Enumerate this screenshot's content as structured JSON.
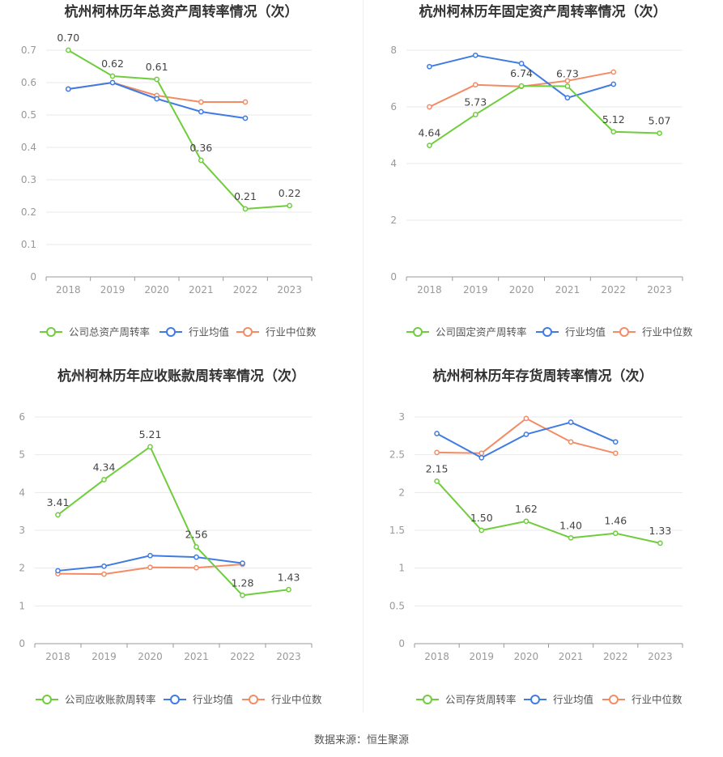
{
  "legend_labels": {
    "industry_avg": "行业均值",
    "industry_median": "行业中位数"
  },
  "colors": {
    "company": "#6fcd3d",
    "industry_avg": "#3f7be2",
    "industry_median": "#f38c65",
    "grid": "#e8e8e8",
    "axis": "#999999",
    "tick_text": "#999999",
    "label_text": "#444444",
    "title_text": "#333333"
  },
  "source_text": "数据来源：恒生聚源",
  "chart_data": [
    {
      "type": "line",
      "title": "杭州柯林历年总资产周转率情况（次）",
      "x": [
        "2018",
        "2019",
        "2020",
        "2021",
        "2022",
        "2023"
      ],
      "ylim": [
        0,
        0.7
      ],
      "yticks": [
        "0",
        "0.1",
        "0.2",
        "0.3",
        "0.4",
        "0.5",
        "0.6",
        "0.7"
      ],
      "grid": true,
      "legend_position": "bottom",
      "series": [
        {
          "name": "公司总资产周转率",
          "role": "company",
          "values": [
            0.7,
            0.62,
            0.61,
            0.36,
            0.21,
            0.22
          ],
          "labels": [
            "0.70",
            "0.62",
            "0.61",
            "0.36",
            "0.21",
            "0.22"
          ]
        },
        {
          "name": "行业均值",
          "role": "industry_avg",
          "values": [
            0.58,
            0.6,
            0.55,
            0.51,
            0.49,
            null
          ]
        },
        {
          "name": "行业中位数",
          "role": "industry_median",
          "values": [
            0.58,
            0.6,
            0.56,
            0.54,
            0.54,
            null
          ]
        }
      ]
    },
    {
      "type": "line",
      "title": "杭州柯林历年固定资产周转率情况（次）",
      "x": [
        "2018",
        "2019",
        "2020",
        "2021",
        "2022",
        "2023"
      ],
      "ylim": [
        0,
        8
      ],
      "yticks": [
        "0",
        "2",
        "4",
        "6",
        "8"
      ],
      "grid": true,
      "legend_position": "bottom",
      "series": [
        {
          "name": "公司固定资产周转率",
          "role": "company",
          "values": [
            4.64,
            5.73,
            6.74,
            6.73,
            5.12,
            5.07
          ],
          "labels": [
            "4.64",
            "5.73",
            "6.74",
            "6.73",
            "5.12",
            "5.07"
          ]
        },
        {
          "name": "行业均值",
          "role": "industry_avg",
          "values": [
            7.42,
            7.82,
            7.53,
            6.32,
            6.8,
            null
          ]
        },
        {
          "name": "行业中位数",
          "role": "industry_median",
          "values": [
            6.0,
            6.78,
            6.72,
            6.92,
            7.23,
            null
          ]
        }
      ]
    },
    {
      "type": "line",
      "title": "杭州柯林历年应收账款周转率情况（次）",
      "x": [
        "2018",
        "2019",
        "2020",
        "2021",
        "2022",
        "2023"
      ],
      "ylim": [
        0,
        6
      ],
      "yticks": [
        "0",
        "1",
        "2",
        "3",
        "4",
        "5",
        "6"
      ],
      "grid": true,
      "legend_position": "bottom",
      "series": [
        {
          "name": "公司应收账款周转率",
          "role": "company",
          "values": [
            3.41,
            4.34,
            5.21,
            2.56,
            1.28,
            1.43
          ],
          "labels": [
            "3.41",
            "4.34",
            "5.21",
            "2.56",
            "1.28",
            "1.43"
          ]
        },
        {
          "name": "行业均值",
          "role": "industry_avg",
          "values": [
            1.93,
            2.05,
            2.33,
            2.29,
            2.13,
            null
          ]
        },
        {
          "name": "行业中位数",
          "role": "industry_median",
          "values": [
            1.85,
            1.84,
            2.02,
            2.01,
            2.1,
            null
          ]
        }
      ]
    },
    {
      "type": "line",
      "title": "杭州柯林历年存货周转率情况（次）",
      "x": [
        "2018",
        "2019",
        "2020",
        "2021",
        "2022",
        "2023"
      ],
      "ylim": [
        0,
        3
      ],
      "yticks": [
        "0",
        "0.5",
        "1",
        "1.5",
        "2",
        "2.5",
        "3"
      ],
      "grid": true,
      "legend_position": "bottom",
      "series": [
        {
          "name": "公司存货周转率",
          "role": "company",
          "values": [
            2.15,
            1.5,
            1.62,
            1.4,
            1.46,
            1.33
          ],
          "labels": [
            "2.15",
            "1.50",
            "1.62",
            "1.40",
            "1.46",
            "1.33"
          ]
        },
        {
          "name": "行业均值",
          "role": "industry_avg",
          "values": [
            2.78,
            2.46,
            2.77,
            2.93,
            2.67,
            null
          ]
        },
        {
          "name": "行业中位数",
          "role": "industry_median",
          "values": [
            2.53,
            2.52,
            2.98,
            2.67,
            2.52,
            null
          ]
        }
      ]
    }
  ]
}
